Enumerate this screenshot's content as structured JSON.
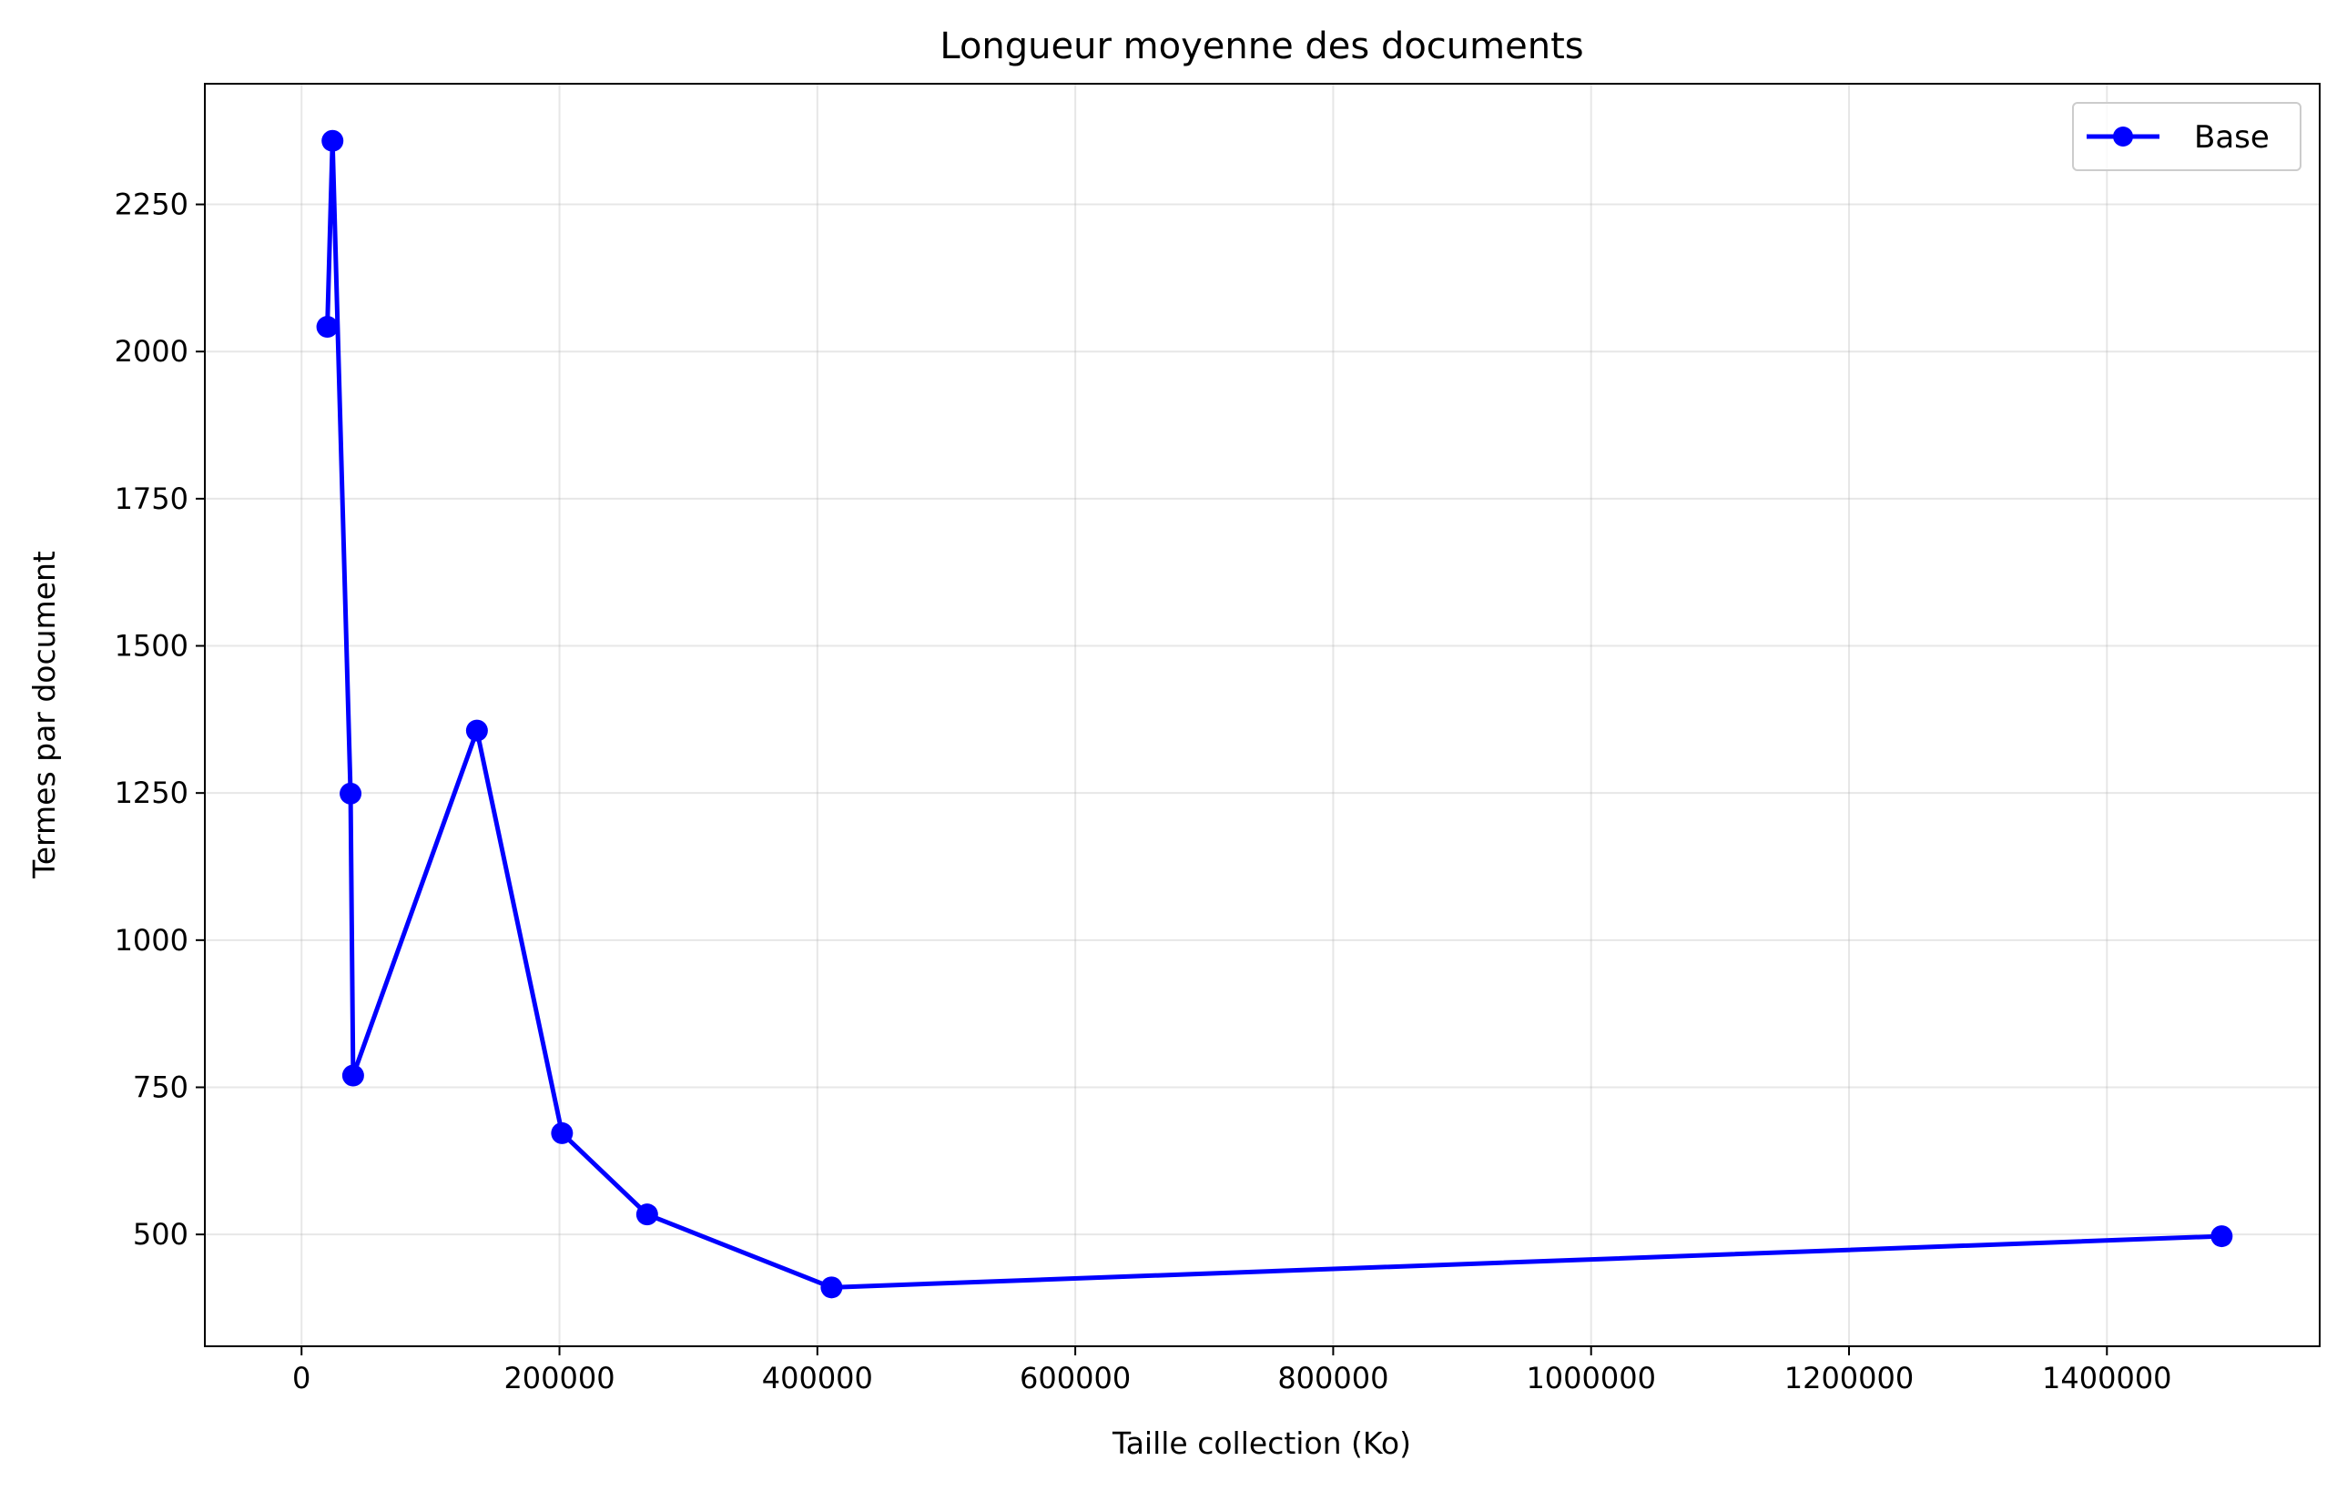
{
  "chart_data": {
    "type": "line",
    "title": "Longueur moyenne des documents",
    "xlabel": "Taille collection (Ko)",
    "ylabel": "Termes par document",
    "xlim": [
      -75000,
      1565000
    ],
    "ylim": [
      310,
      2455
    ],
    "xticks": [
      0,
      200000,
      400000,
      600000,
      800000,
      1000000,
      1200000,
      1400000
    ],
    "xtick_labels": [
      "0",
      "200000",
      "400000",
      "600000",
      "800000",
      "1000000",
      "1200000",
      "1400000"
    ],
    "yticks": [
      500,
      750,
      1000,
      1250,
      1500,
      1750,
      2000,
      2250
    ],
    "ytick_labels": [
      "500",
      "750",
      "1000",
      "1250",
      "1500",
      "1750",
      "2000",
      "2250"
    ],
    "grid": true,
    "legend_position": "top-right",
    "series": [
      {
        "name": "Base",
        "color": "#0000ff",
        "marker": "circle",
        "x": [
          20000,
          24000,
          38000,
          40000,
          136000,
          202000,
          268000,
          411000,
          1489000
        ],
        "y": [
          2042,
          2358,
          1249,
          770,
          1356,
          672,
          534,
          410,
          497
        ]
      }
    ]
  }
}
